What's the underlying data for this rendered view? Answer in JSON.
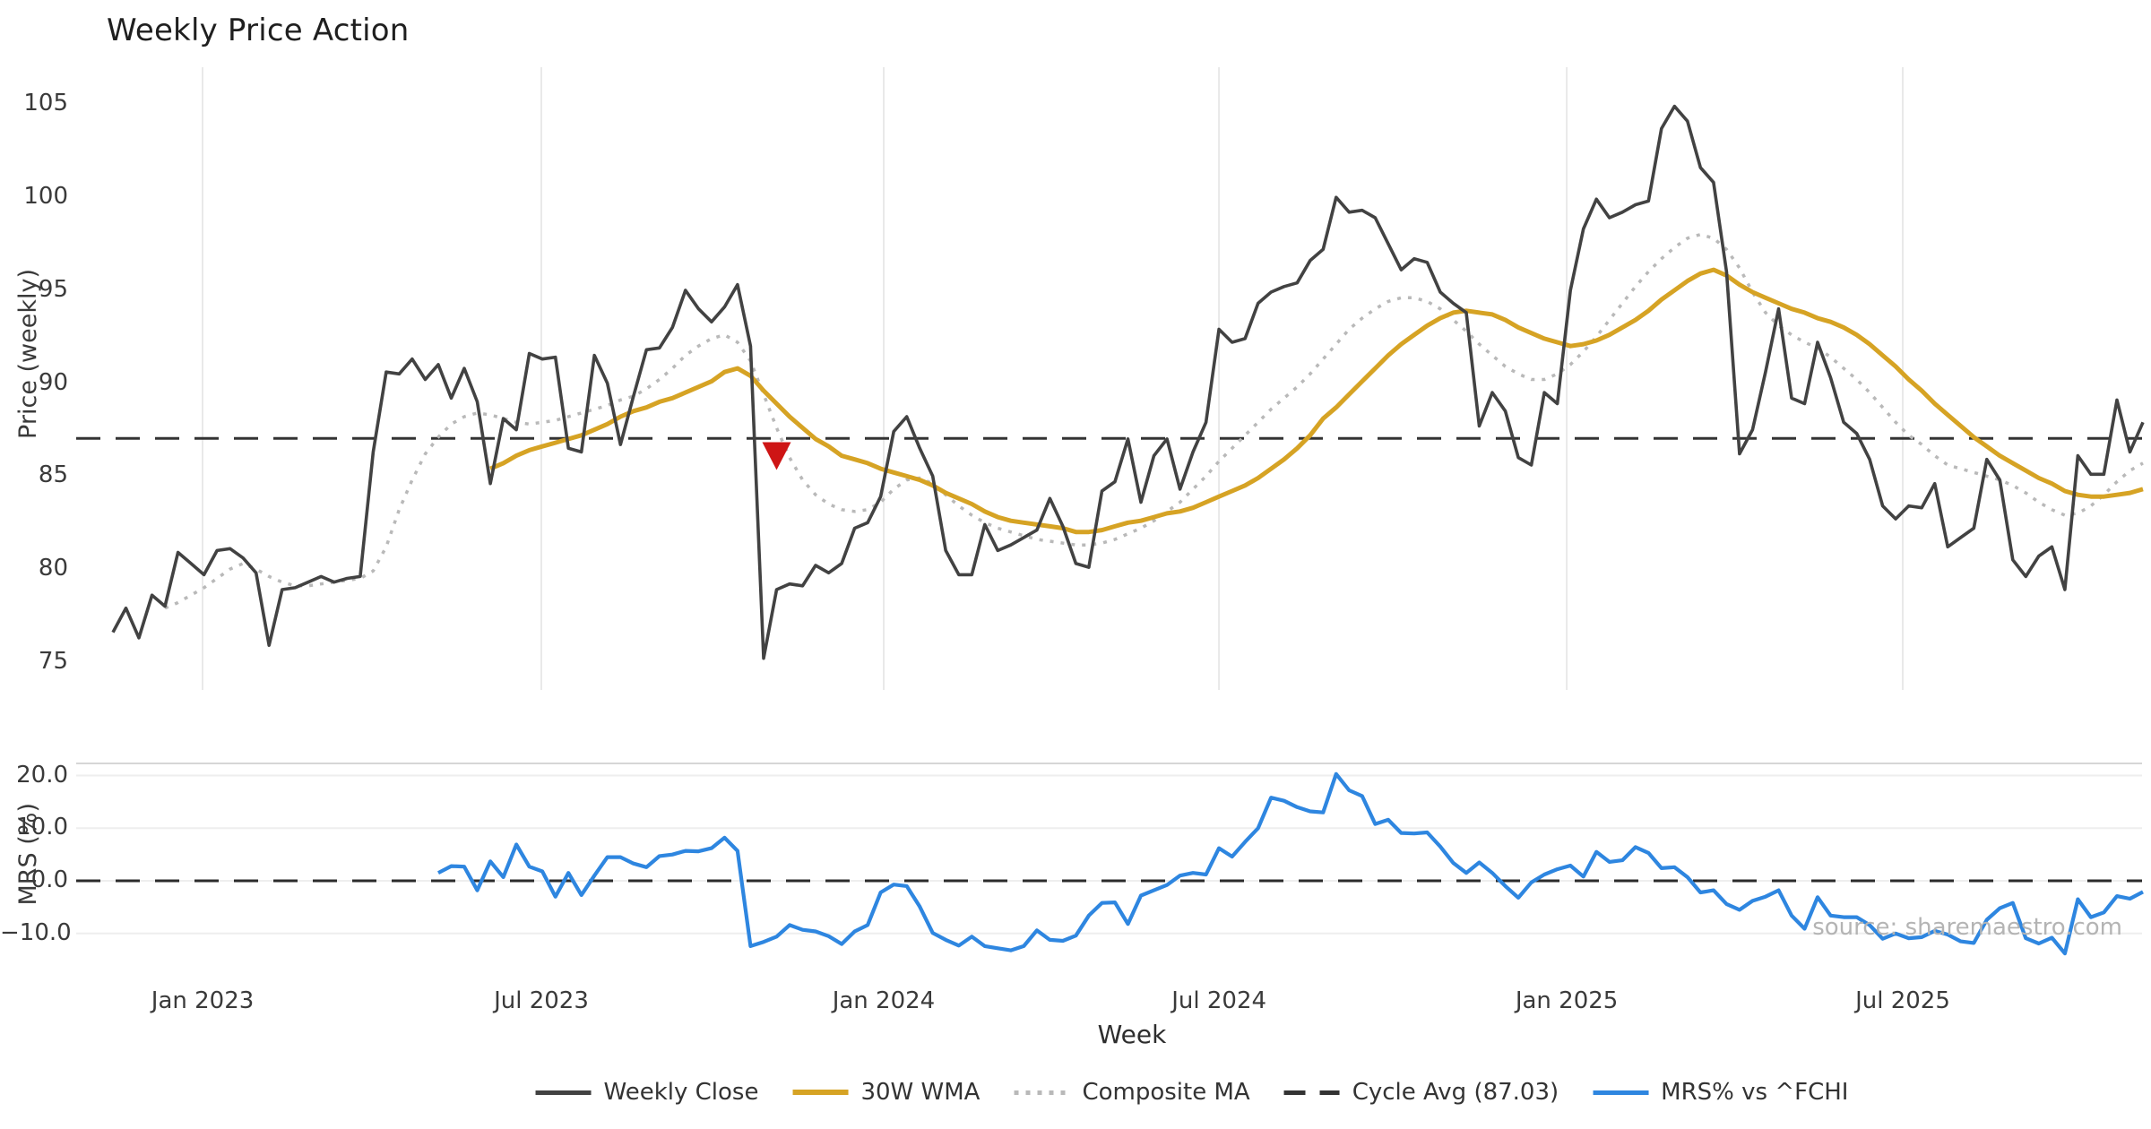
{
  "chart_data": {
    "type": "line",
    "title": "Weekly Price Action",
    "xlabel": "Week",
    "source_note": "source: sharemaestro.com",
    "x": {
      "n_points": 157,
      "step": "weekly",
      "range_label": "Nov 2022 - Nov 2025",
      "tick_labels": [
        "Jan 2023",
        "Jul 2023",
        "Jan 2024",
        "Jul 2024",
        "Jan 2025",
        "Jul 2025"
      ],
      "tick_weeks": [
        6.89,
        32.92,
        59.23,
        85.0,
        111.72,
        137.54
      ]
    },
    "price_panel": {
      "ylabel": "Price (weekly)",
      "ylim": [
        73.5,
        107.0
      ],
      "yticks": [
        {
          "label": "105",
          "value": 105
        },
        {
          "label": "100",
          "value": 100
        },
        {
          "label": "95",
          "value": 95
        },
        {
          "label": "90",
          "value": 90
        },
        {
          "label": "85",
          "value": 85
        },
        {
          "label": "80",
          "value": 80
        },
        {
          "label": "75",
          "value": 75
        }
      ],
      "grid": "vertical"
    },
    "mrs_panel": {
      "ylabel": "MRS (%)",
      "ylim": [
        -18.2,
        22.3
      ],
      "yticks": [
        {
          "label": "20.0",
          "value": 20
        },
        {
          "label": "10.0",
          "value": 10
        },
        {
          "label": "0.0",
          "value": 0
        },
        {
          "label": "−10.0",
          "value": -10
        }
      ],
      "zero_line": 0.0,
      "grid": "horizontal"
    },
    "cycle_avg": 87.03,
    "series": [
      {
        "name": "Weekly Close",
        "panel": "price",
        "style": "solid",
        "color": "#424242",
        "width": 3.6,
        "values": [
          76.6,
          77.9,
          76.3,
          78.6,
          78.0,
          80.9,
          80.3,
          79.7,
          81.0,
          81.1,
          80.6,
          79.8,
          75.9,
          78.9,
          79.0,
          79.3,
          79.6,
          79.3,
          79.5,
          79.6,
          86.3,
          90.6,
          90.5,
          91.3,
          90.2,
          91.0,
          89.2,
          90.8,
          89.0,
          84.6,
          88.1,
          87.5,
          91.6,
          91.3,
          91.4,
          86.5,
          86.3,
          91.5,
          90.0,
          86.7,
          89.3,
          91.8,
          91.9,
          93.0,
          95.0,
          94.0,
          93.3,
          94.1,
          95.3,
          92.0,
          75.2,
          78.9,
          79.2,
          79.1,
          80.2,
          79.8,
          80.3,
          82.2,
          82.5,
          83.9,
          87.4,
          88.2,
          86.5,
          85.0,
          81.0,
          79.7,
          79.7,
          82.4,
          81.0,
          81.3,
          81.7,
          82.1,
          83.8,
          82.3,
          80.3,
          80.1,
          84.2,
          84.7,
          87.0,
          83.6,
          86.1,
          87.0,
          84.3,
          86.3,
          87.9,
          92.9,
          92.2,
          92.4,
          94.3,
          94.9,
          95.2,
          95.4,
          96.6,
          97.2,
          100.0,
          99.2,
          99.3,
          98.9,
          97.5,
          96.1,
          96.7,
          96.5,
          94.9,
          94.3,
          93.8,
          87.7,
          89.5,
          88.5,
          86.0,
          85.6,
          89.5,
          88.9,
          95.0,
          98.3,
          99.9,
          98.9,
          99.2,
          99.6,
          99.8,
          103.7,
          104.9,
          104.1,
          101.6,
          100.8,
          96.0,
          86.2,
          87.5,
          90.6,
          94.0,
          89.2,
          88.9,
          92.2,
          90.3,
          87.9,
          87.3,
          85.9,
          83.4,
          82.7,
          83.4,
          83.3,
          84.6,
          81.2,
          81.7,
          82.2,
          85.9,
          84.8,
          80.5,
          79.6,
          80.7,
          81.2,
          78.9,
          86.1,
          85.1,
          85.1,
          89.1,
          86.3,
          87.9
        ]
      },
      {
        "name": "30W WMA",
        "panel": "price",
        "style": "solid",
        "color": "#d6a324",
        "width": 5,
        "values": [
          null,
          null,
          null,
          null,
          null,
          null,
          null,
          null,
          null,
          null,
          null,
          null,
          null,
          null,
          null,
          null,
          null,
          null,
          null,
          null,
          null,
          null,
          null,
          null,
          null,
          null,
          null,
          null,
          null,
          85.4,
          85.7,
          86.1,
          86.4,
          86.6,
          86.8,
          87.0,
          87.2,
          87.5,
          87.8,
          88.2,
          88.5,
          88.7,
          89.0,
          89.2,
          89.5,
          89.8,
          90.1,
          90.6,
          90.8,
          90.4,
          89.6,
          88.9,
          88.2,
          87.6,
          87.0,
          86.6,
          86.1,
          85.9,
          85.7,
          85.4,
          85.2,
          85.0,
          84.8,
          84.5,
          84.1,
          83.8,
          83.5,
          83.1,
          82.8,
          82.6,
          82.5,
          82.4,
          82.3,
          82.2,
          82.0,
          82.0,
          82.1,
          82.3,
          82.5,
          82.6,
          82.8,
          83.0,
          83.1,
          83.3,
          83.6,
          83.9,
          84.2,
          84.5,
          84.9,
          85.4,
          85.9,
          86.5,
          87.2,
          88.1,
          88.7,
          89.4,
          90.1,
          90.8,
          91.5,
          92.1,
          92.6,
          93.1,
          93.5,
          93.8,
          93.9,
          93.8,
          93.7,
          93.4,
          93.0,
          92.7,
          92.4,
          92.2,
          92.0,
          92.1,
          92.3,
          92.6,
          93.0,
          93.4,
          93.9,
          94.5,
          95.0,
          95.5,
          95.9,
          96.1,
          95.8,
          95.3,
          94.9,
          94.6,
          94.3,
          94.0,
          93.8,
          93.5,
          93.3,
          93.0,
          92.6,
          92.1,
          91.5,
          90.9,
          90.2,
          89.6,
          88.9,
          88.3,
          87.7,
          87.1,
          86.6,
          86.1,
          85.7,
          85.3,
          84.9,
          84.6,
          84.2,
          84.0,
          83.9,
          83.9,
          84.0,
          84.1,
          84.3
        ]
      },
      {
        "name": "Composite MA",
        "panel": "price",
        "style": "dotted",
        "color": "#b9b9b9",
        "width": 3.5,
        "values": [
          null,
          null,
          null,
          null,
          77.9,
          78.2,
          78.6,
          79.0,
          79.5,
          80.0,
          80.3,
          80.0,
          79.6,
          79.3,
          79.1,
          79.1,
          79.2,
          79.3,
          79.4,
          79.5,
          79.9,
          81.2,
          83.2,
          84.8,
          86.2,
          87.1,
          87.8,
          88.2,
          88.4,
          88.3,
          88.1,
          87.9,
          87.8,
          87.9,
          88.0,
          88.2,
          88.4,
          88.6,
          88.8,
          89.1,
          89.3,
          89.7,
          90.2,
          90.8,
          91.5,
          92.0,
          92.4,
          92.6,
          92.2,
          91.2,
          89.4,
          87.6,
          86.0,
          84.8,
          84.0,
          83.5,
          83.2,
          83.1,
          83.2,
          83.6,
          84.3,
          84.8,
          84.9,
          84.6,
          84.0,
          83.4,
          82.9,
          82.5,
          82.2,
          82.0,
          81.8,
          81.6,
          81.5,
          81.4,
          81.3,
          81.3,
          81.4,
          81.6,
          81.9,
          82.2,
          82.6,
          83.1,
          83.6,
          84.3,
          85.0,
          85.8,
          86.5,
          87.2,
          87.9,
          88.6,
          89.2,
          89.8,
          90.5,
          91.3,
          92.1,
          92.9,
          93.5,
          94.0,
          94.4,
          94.6,
          94.6,
          94.4,
          94.0,
          93.4,
          92.8,
          92.1,
          91.5,
          90.9,
          90.5,
          90.2,
          90.2,
          90.5,
          91.0,
          91.7,
          92.5,
          93.4,
          94.3,
          95.2,
          96.0,
          96.7,
          97.3,
          97.8,
          98.0,
          97.8,
          97.2,
          96.2,
          94.9,
          93.8,
          93.1,
          92.6,
          92.2,
          91.9,
          91.4,
          90.8,
          90.2,
          89.5,
          88.7,
          87.9,
          87.2,
          86.7,
          86.1,
          85.6,
          85.4,
          85.2,
          85.0,
          84.8,
          84.5,
          84.1,
          83.6,
          83.2,
          82.9,
          83.0,
          83.4,
          84.0,
          84.7,
          85.3,
          85.7
        ]
      },
      {
        "name": "Cycle Avg (87.03)",
        "panel": "price",
        "style": "dashed",
        "color": "#333333",
        "width": 3,
        "value": 87.03
      },
      {
        "name": "MRS% vs ^FCHI",
        "panel": "mrs",
        "style": "solid",
        "color": "#2e86e0",
        "width": 4.2,
        "values": [
          null,
          null,
          null,
          null,
          null,
          null,
          null,
          null,
          null,
          null,
          null,
          null,
          null,
          null,
          null,
          null,
          null,
          null,
          null,
          null,
          null,
          null,
          null,
          null,
          null,
          1.5,
          2.8,
          2.7,
          -1.8,
          3.7,
          0.7,
          6.9,
          2.7,
          1.8,
          -3.0,
          1.5,
          -2.7,
          1.0,
          4.5,
          4.5,
          3.3,
          2.6,
          4.7,
          5.0,
          5.7,
          5.6,
          6.2,
          8.2,
          5.7,
          -12.4,
          -11.6,
          -10.6,
          -8.4,
          -9.3,
          -9.6,
          -10.5,
          -12.0,
          -9.6,
          -8.4,
          -2.2,
          -0.7,
          -1.0,
          -4.9,
          -9.9,
          -11.2,
          -12.3,
          -10.6,
          -12.4,
          -12.8,
          -13.2,
          -12.4,
          -9.4,
          -11.2,
          -11.4,
          -10.4,
          -6.6,
          -4.2,
          -4.1,
          -8.2,
          -2.8,
          -1.8,
          -0.8,
          1.0,
          1.5,
          1.2,
          6.2,
          4.6,
          7.4,
          10.0,
          15.8,
          15.2,
          14.0,
          13.2,
          13.0,
          20.3,
          17.2,
          16.1,
          10.8,
          11.6,
          9.1,
          9.0,
          9.2,
          6.5,
          3.4,
          1.5,
          3.5,
          1.5,
          -1.0,
          -3.2,
          -0.3,
          1.2,
          2.2,
          2.9,
          0.8,
          5.5,
          3.6,
          3.9,
          6.4,
          5.3,
          2.4,
          2.6,
          0.7,
          -2.2,
          -1.8,
          -4.4,
          -5.5,
          -3.8,
          -3.0,
          -1.8,
          -6.6,
          -9.1,
          -3.1,
          -6.6,
          -6.9,
          -6.9,
          -8.4,
          -11.0,
          -10.0,
          -10.9,
          -10.7,
          -9.5,
          -10.2,
          -11.5,
          -11.8,
          -7.4,
          -5.2,
          -4.2,
          -10.9,
          -11.9,
          -10.8,
          -13.8,
          -3.5,
          -6.9,
          -6.0,
          -2.9,
          -3.4,
          -2.1
        ]
      }
    ],
    "signals": [
      {
        "name": "sell-signal",
        "shape": "triangle-down",
        "color": "#ce1515",
        "week_index": 51,
        "price": 86.2
      }
    ],
    "legend": {
      "position": "bottom-center"
    },
    "colors": {
      "grid": "#e9e9e9",
      "mrs_grid": "#eeeeee",
      "mrs_top_spine": "#d6d6d6",
      "tick_text": "#3a3a3a",
      "title_text": "#1f1f1f",
      "source_text": "#b4b4b4"
    }
  }
}
